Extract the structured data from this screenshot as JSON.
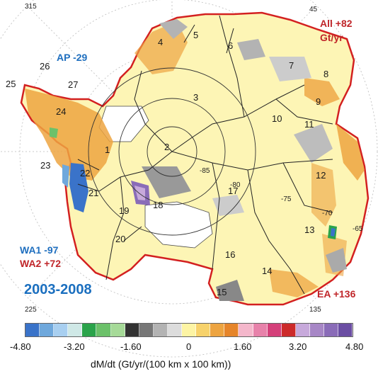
{
  "map": {
    "period": "2003-2008",
    "region_totals": [
      {
        "id": "all",
        "text_line1": "All +82",
        "text_line2": "Gt/yr",
        "color": "#c0262a"
      },
      {
        "id": "ap",
        "text": "AP -29",
        "color": "#1f6fbf"
      },
      {
        "id": "wa1",
        "text": "WA1 -97",
        "color": "#1f6fbf"
      },
      {
        "id": "wa2",
        "text": "WA2 +72",
        "color": "#c0262a"
      },
      {
        "id": "ea",
        "text": "EA +136",
        "color": "#c0262a"
      }
    ],
    "basins": [
      "1",
      "2",
      "3",
      "4",
      "5",
      "6",
      "7",
      "8",
      "9",
      "10",
      "11",
      "12",
      "13",
      "14",
      "15",
      "16",
      "17",
      "18",
      "19",
      "20",
      "21",
      "22",
      "23",
      "24",
      "25",
      "26",
      "27"
    ],
    "longitude_labels": [
      "315",
      "45",
      "225",
      "135"
    ],
    "latitude_labels": [
      "-85",
      "-80",
      "-75",
      "-70",
      "-65"
    ]
  },
  "colorbar": {
    "title": "dM/dt (Gt/yr/(100 km x 100 km))",
    "tick_labels": [
      "-4.80",
      "-3.20",
      "-1.60",
      "0",
      "1.60",
      "3.20",
      "4.80"
    ],
    "colors": [
      "#3a73c9",
      "#6fa8dc",
      "#a8cff0",
      "#cfe8e6",
      "#2aa34a",
      "#6cc16a",
      "#a6da98",
      "#333333",
      "#777777",
      "#b3b3b3",
      "#dcdcdc",
      "#fdf4a4",
      "#f7d26b",
      "#eda441",
      "#e6852a",
      "#f4b7cb",
      "#e782aa",
      "#d4407a",
      "#cc2a2a",
      "#c7a9db",
      "#a787c6",
      "#8a6cb8",
      "#6b4ea3"
    ]
  }
}
